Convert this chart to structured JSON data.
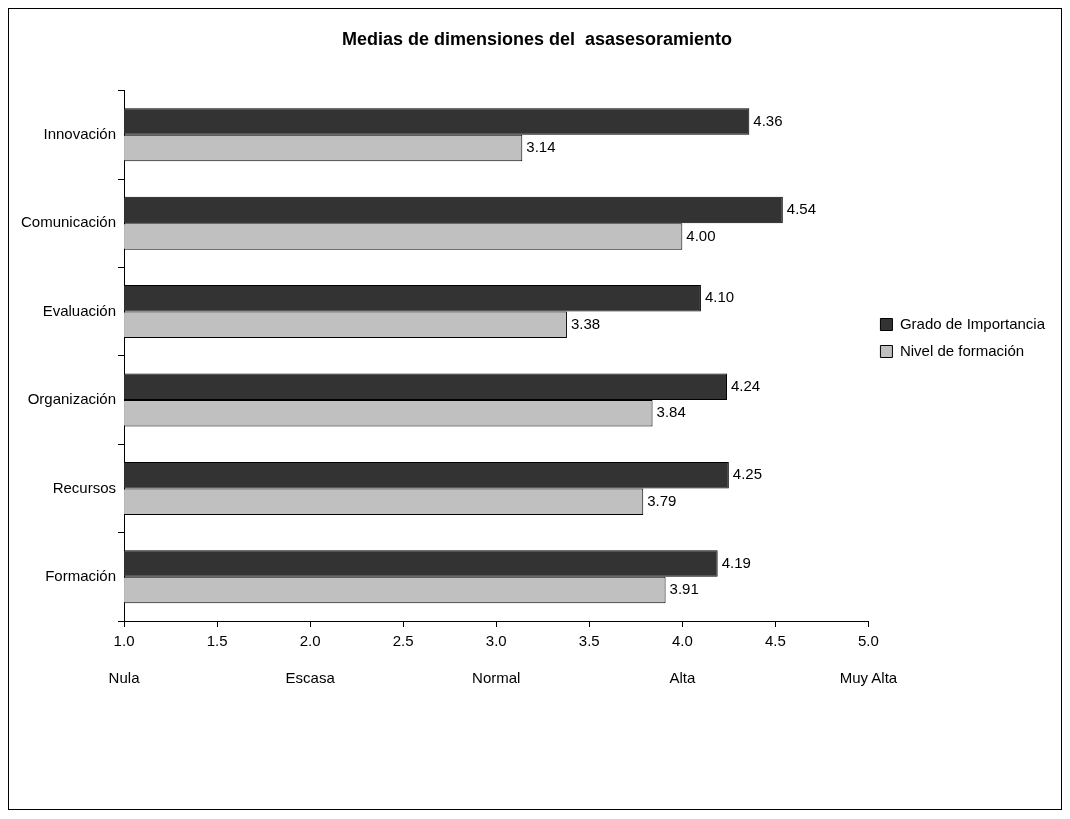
{
  "chart_data": {
    "type": "bar",
    "orientation": "horizontal",
    "title": "Medias de dimensiones del  asasesoramiento",
    "categories": [
      "Innovación",
      "Comunicación",
      "Evaluación",
      "Organización",
      "Recursos",
      "Formación"
    ],
    "series": [
      {
        "name": "Grado de Importancia",
        "color": "#333333",
        "values": [
          4.36,
          4.54,
          4.1,
          4.24,
          4.25,
          4.19
        ],
        "value_labels": [
          "4.36",
          "4.54",
          "4.10",
          "4.24",
          "4.25",
          "4.19"
        ]
      },
      {
        "name": "Nivel de formación",
        "color": "#c0c0c0",
        "values": [
          3.14,
          4.0,
          3.38,
          3.84,
          3.79,
          3.91
        ],
        "value_labels": [
          "3.14",
          "4.00",
          "3.38",
          "3.84",
          "3.79",
          "3.91"
        ]
      }
    ],
    "xlim": [
      1,
      5
    ],
    "xticks": [
      {
        "value": 1,
        "label": "1.0"
      },
      1.5,
      {
        "value": 2,
        "label": "2.0"
      },
      2.5,
      {
        "value": 3,
        "label": "3.0"
      },
      3.5,
      {
        "value": 4,
        "label": "4.0"
      },
      4.5,
      {
        "value": 5,
        "label": "5.0"
      }
    ],
    "annotations": [
      "Nula",
      "Escasa",
      "Normal",
      "Alta",
      "Muy Alta"
    ],
    "grid": false,
    "legend": "right"
  }
}
